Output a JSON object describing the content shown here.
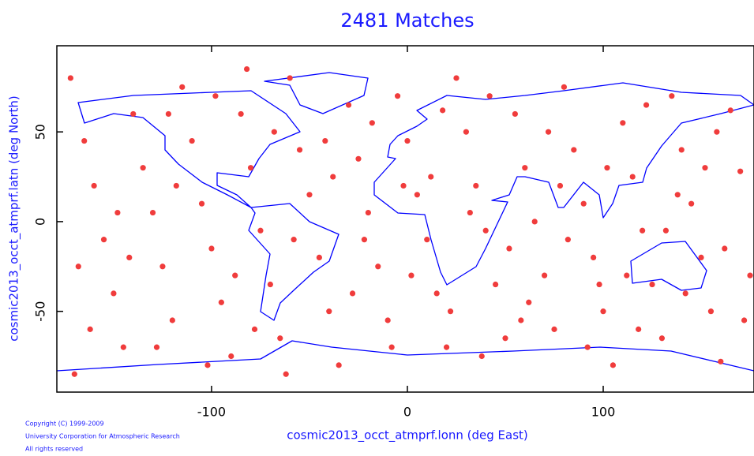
{
  "chart_data": {
    "type": "scatter",
    "title": "2481 Matches",
    "x_label": "cosmic2013_occt_atmprf.lonn (deg East)",
    "y_label": "cosmic2013_occt_atmprf.latn (deg North)",
    "copyright": [
      "Copyright (C) 1999-2009",
      "University Corporation for Atmospheric Research",
      "All rights reserved"
    ],
    "xlim": [
      -179,
      177
    ],
    "ylim": [
      -95,
      98
    ],
    "xticks": [
      -100,
      0,
      100
    ],
    "yticks": [
      -50,
      0,
      50
    ],
    "color": "#f03c3c",
    "x": [
      -172,
      -165,
      -160,
      -155,
      -150,
      -145,
      -170,
      -140,
      -135,
      -130,
      -125,
      -120,
      -115,
      -110,
      -105,
      -100,
      -95,
      -90,
      -85,
      -80,
      -75,
      -70,
      -65,
      -60,
      -55,
      -50,
      -45,
      -40,
      -35,
      -30,
      -25,
      -20,
      -15,
      -10,
      -5,
      0,
      5,
      10,
      15,
      20,
      25,
      30,
      35,
      40,
      45,
      50,
      55,
      60,
      65,
      70,
      75,
      80,
      85,
      90,
      95,
      100,
      105,
      110,
      115,
      120,
      125,
      130,
      135,
      140,
      145,
      150,
      155,
      160,
      165,
      170,
      -168,
      -148,
      -128,
      -118,
      -98,
      -88,
      -78,
      -68,
      -58,
      -38,
      -28,
      -18,
      -8,
      2,
      12,
      22,
      32,
      42,
      52,
      62,
      72,
      82,
      92,
      102,
      112,
      122,
      132,
      142,
      152,
      162,
      172,
      -162,
      -142,
      -122,
      -102,
      -82,
      -62,
      -42,
      -22,
      -2,
      18,
      38,
      58,
      78,
      98,
      118,
      138,
      158,
      175
    ],
    "y": [
      80,
      45,
      20,
      -10,
      -40,
      -70,
      -85,
      60,
      30,
      5,
      -25,
      -55,
      75,
      45,
      10,
      -15,
      -45,
      -75,
      60,
      30,
      -5,
      -35,
      -65,
      80,
      40,
      15,
      -20,
      -50,
      -80,
      65,
      35,
      5,
      -25,
      -55,
      70,
      45,
      15,
      -10,
      -40,
      -70,
      80,
      50,
      20,
      -5,
      -35,
      -65,
      60,
      30,
      0,
      -30,
      -60,
      75,
      40,
      10,
      -20,
      -50,
      -80,
      55,
      25,
      -5,
      -35,
      -65,
      70,
      40,
      10,
      -20,
      -50,
      -78,
      62,
      28,
      -25,
      5,
      -70,
      20,
      70,
      -30,
      -60,
      50,
      -10,
      25,
      -40,
      55,
      -70,
      -30,
      25,
      -50,
      5,
      70,
      -15,
      -45,
      50,
      -10,
      -70,
      30,
      -30,
      65,
      -5,
      -40,
      30,
      -15,
      -55,
      -60,
      -20,
      60,
      -80,
      85,
      -85,
      45,
      -10,
      20,
      62,
      -75,
      -55,
      20,
      -35,
      -60,
      15,
      50,
      -30
    ]
  }
}
